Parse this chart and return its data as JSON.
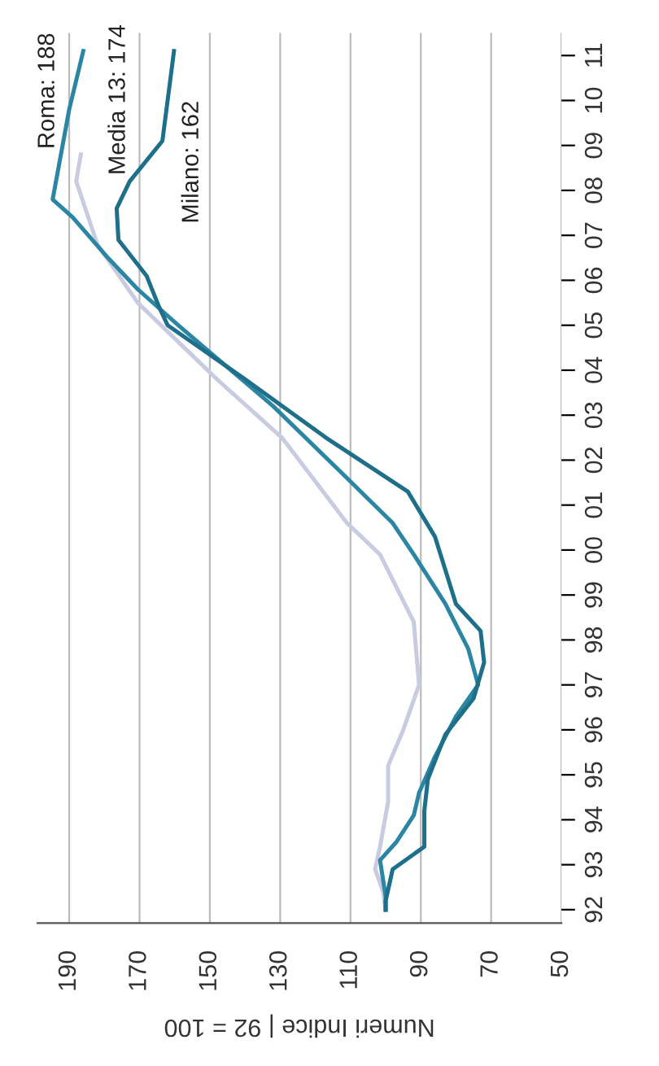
{
  "chart_data": {
    "type": "line",
    "orientation": "horizontal",
    "xlabel": "Numeri Indice | 92 = 100",
    "x": [
      1992.0,
      1992.3,
      1993.1,
      1993.5,
      1994.1,
      1994.6,
      1995.4,
      1996.3,
      1997.0,
      1997.8,
      1998.8,
      1999.9,
      2000.6,
      2001.6,
      2003.2,
      2005.0,
      2005.8,
      2006.5,
      2007.4,
      2007.8,
      2009.8,
      2011.1
    ],
    "series": [
      {
        "color": "#c9cbe0",
        "x": [
          1992.0,
          1992.4,
          1992.9,
          1993.4,
          1994.4,
          1995.2,
          1996.0,
          1997.0,
          1998.4,
          1999.9,
          2000.6,
          2002.5,
          2003.8,
          2005.5,
          2006.8,
          2008.2,
          2008.8
        ],
        "values": [
          100,
          100.7,
          103,
          101.6,
          99.3,
          99.3,
          95,
          90.5,
          92,
          101.6,
          111,
          129.5,
          148,
          170.5,
          182,
          188,
          186.7
        ]
      },
      {
        "color": "#2b86a3",
        "values": [
          100,
          100,
          101.6,
          97,
          92,
          90.5,
          86,
          80,
          73.7,
          76.5,
          83,
          92,
          98,
          111,
          132,
          159,
          170.5,
          179,
          189,
          194.7,
          190,
          186
        ]
      },
      {
        "color": "#1d6f8a",
        "x": [
          1992.0,
          1992.2,
          1992.9,
          1993.4,
          1994.2,
          1994.9,
          1995.9,
          1996.7,
          1997.5,
          1998.2,
          1998.8,
          2000.3,
          2001.3,
          2002.5,
          2003.8,
          2005.0,
          2005.4,
          2006.1,
          2006.9,
          2007.6,
          2008.2,
          2009.1,
          2011.1
        ],
        "values": [
          100,
          100,
          98,
          89,
          89,
          88,
          83,
          75,
          72,
          73,
          80,
          86,
          93.7,
          117,
          140,
          162,
          164.4,
          168,
          176,
          176.5,
          172.8,
          163.5,
          160.2
        ]
      }
    ],
    "ylim": [
      1991.7,
      2011.5
    ],
    "yticks": [
      {
        "value": 1992,
        "label": "92"
      },
      {
        "value": 1993,
        "label": "93"
      },
      {
        "value": 1994,
        "label": "94"
      },
      {
        "value": 1995,
        "label": "95"
      },
      {
        "value": 1996,
        "label": "96"
      },
      {
        "value": 1997,
        "label": "97"
      },
      {
        "value": 1998,
        "label": "98"
      },
      {
        "value": 1999,
        "label": "99"
      },
      {
        "value": 2000,
        "label": "00"
      },
      {
        "value": 2001,
        "label": "01"
      },
      {
        "value": 2002,
        "label": "02"
      },
      {
        "value": 2003,
        "label": "03"
      },
      {
        "value": 2004,
        "label": "04"
      },
      {
        "value": 2005,
        "label": "05"
      },
      {
        "value": 2006,
        "label": "06"
      },
      {
        "value": 2007,
        "label": "07"
      },
      {
        "value": 2008,
        "label": "08"
      },
      {
        "value": 2009,
        "label": "09"
      },
      {
        "value": 2010,
        "label": "10"
      },
      {
        "value": 2011,
        "label": "11"
      }
    ],
    "xlim": [
      199,
      50
    ],
    "xticks": [
      50,
      70,
      90,
      110,
      130,
      150,
      170,
      190
    ],
    "grid": "x",
    "legend": false,
    "marker": "none",
    "line_style": "solid",
    "annotations": [
      "Roma: 188",
      "Media 13: 174",
      "Milano: 162"
    ]
  }
}
